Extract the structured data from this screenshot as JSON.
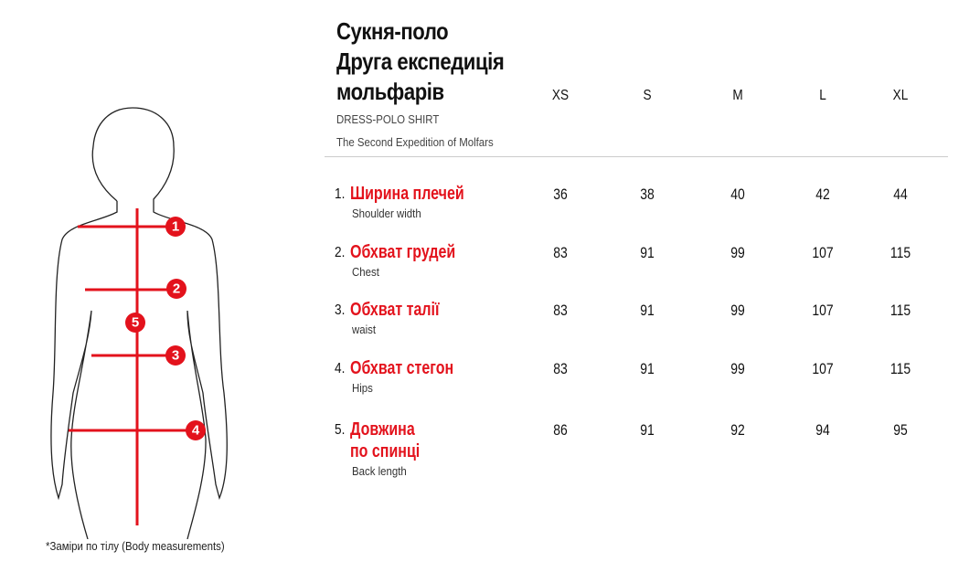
{
  "header": {
    "title": [
      "Сукня-поло",
      "Друга експедиція",
      "мольфарів"
    ],
    "subtitle": "DRESS-POLO SHIRT",
    "subtitle2": "The Second Expedition of Molfars"
  },
  "table": {
    "sizes": [
      "XS",
      "S",
      "M",
      "L",
      "XL"
    ],
    "rows": [
      {
        "number": "1.",
        "name": [
          "Ширина плечей"
        ],
        "english": "Shoulder width",
        "values": [
          36,
          38,
          40,
          42,
          44
        ]
      },
      {
        "number": "2.",
        "name": [
          "Обхват грудей"
        ],
        "english": "Chest",
        "values": [
          83,
          91,
          99,
          107,
          115
        ]
      },
      {
        "number": "3.",
        "name": [
          "Обхват талії"
        ],
        "english": "waist",
        "values": [
          83,
          91,
          99,
          107,
          115
        ]
      },
      {
        "number": "4.",
        "name": [
          "Обхват стегон"
        ],
        "english": "Hips",
        "values": [
          83,
          91,
          99,
          107,
          115
        ]
      },
      {
        "number": "5.",
        "name": [
          "Довжина",
          "по спинці"
        ],
        "english": "Back length",
        "values": [
          86,
          91,
          92,
          94,
          95
        ]
      }
    ]
  },
  "figure": {
    "markers": [
      "1",
      "2",
      "3",
      "4",
      "5"
    ]
  },
  "footnote": "*Заміри по тілу (Body measurements)"
}
